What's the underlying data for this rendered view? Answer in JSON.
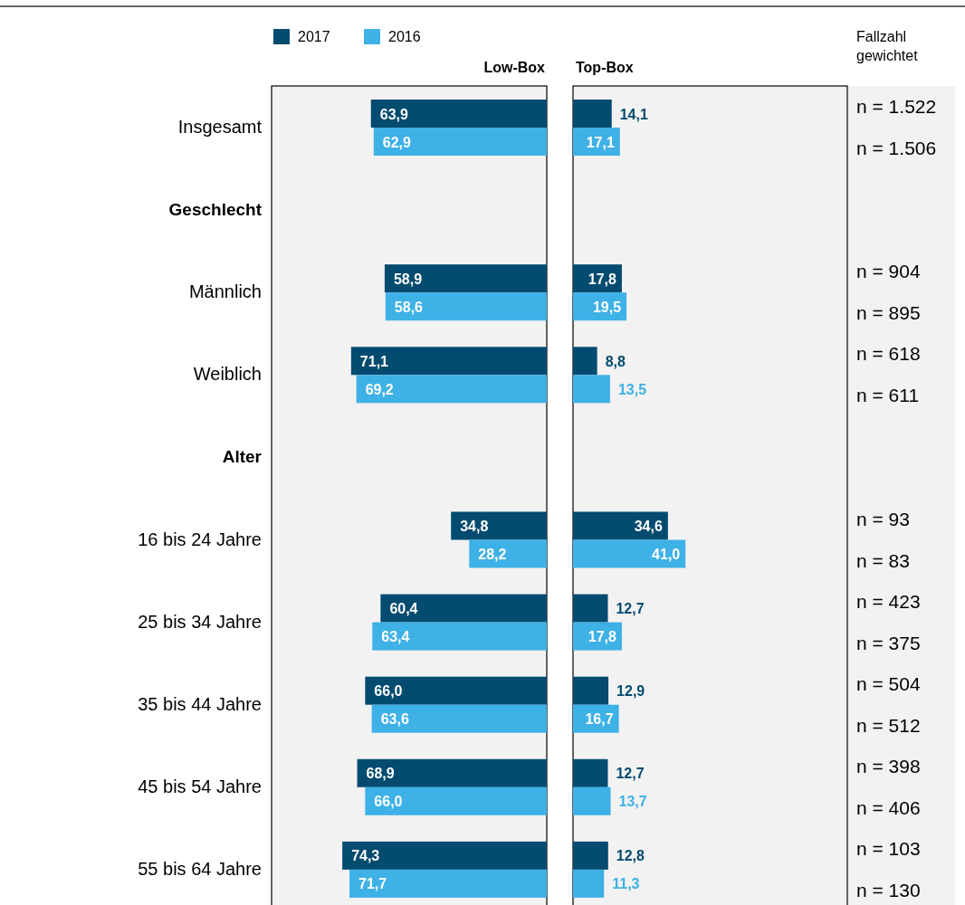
{
  "chart_data": [
    {
      "type": "bar",
      "orientation": "horizontal",
      "title": "Low-Box",
      "categories": [
        "Insgesamt",
        "Geschlecht",
        "Männlich",
        "Weiblich",
        "Alter",
        "16 bis 24 Jahre",
        "25 bis 34 Jahre",
        "35 bis 44 Jahre",
        "45 bis 54 Jahre",
        "55 bis 64 Jahre"
      ],
      "xlim": [
        100,
        0
      ],
      "tick_labels": "y",
      "legend": "top",
      "series": [
        {
          "name": "2017",
          "color": "#034b6f",
          "values": [
            63.9,
            null,
            58.9,
            71.1,
            null,
            34.8,
            60.4,
            66.0,
            68.9,
            74.3
          ],
          "value_labels": [
            "63,9",
            null,
            "58,9",
            "71,1",
            null,
            "34,8",
            "60,4",
            "66,0",
            "68,9",
            "74,3"
          ]
        },
        {
          "name": "2016",
          "color": "#3eb1e6",
          "values": [
            62.9,
            null,
            58.6,
            69.2,
            null,
            28.2,
            63.4,
            63.6,
            66.0,
            71.7
          ],
          "value_labels": [
            "62,9",
            null,
            "58,6",
            "69,2",
            null,
            "28,2",
            "63,4",
            "63,6",
            "66,0",
            "71,7"
          ]
        }
      ]
    },
    {
      "type": "bar",
      "orientation": "horizontal",
      "title": "Top-Box",
      "categories": [
        null,
        null,
        null,
        null,
        null,
        null,
        null,
        null,
        null,
        null
      ],
      "xlim": [
        0,
        100
      ],
      "tick_labels": false,
      "series": [
        {
          "color": "#034b6f",
          "values": [
            14.1,
            null,
            17.8,
            8.8,
            null,
            34.6,
            12.7,
            12.9,
            12.7,
            12.8
          ],
          "value_labels": [
            "14,1",
            null,
            "17,8",
            "8,8",
            null,
            "34,6",
            "12,7",
            "12,9",
            "12,7",
            "12,8"
          ]
        },
        {
          "color": "#3eb1e6",
          "values": [
            17.1,
            null,
            19.5,
            13.5,
            null,
            41.0,
            17.8,
            16.7,
            13.7,
            11.3
          ],
          "value_labels": [
            "17,1",
            null,
            "19,5",
            "13,5",
            null,
            "41,0",
            "17,8",
            "16,7",
            "13,7",
            "11,3"
          ]
        }
      ]
    },
    {
      "type": "other",
      "title": "Fallzahl gewichtet",
      "annotations": [
        "n = 1.522",
        "n = 1.506",
        "n = 904",
        "n = 895",
        "n = 618",
        "n = 611",
        "n = 93",
        "n = 83",
        "n = 423",
        "n = 375",
        "n = 504",
        "n = 512",
        "n = 398",
        "n = 406",
        "n = 103",
        "n = 130"
      ]
    }
  ]
}
